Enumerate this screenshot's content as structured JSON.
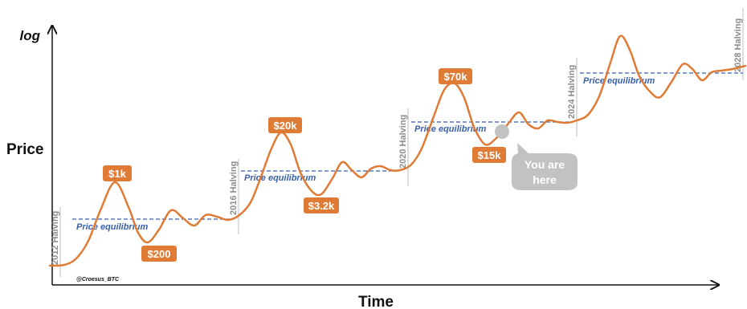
{
  "chart_data": {
    "type": "line",
    "ylabel": "Price",
    "xlabel": "Time",
    "yscale_label": "log",
    "credit": "@Croesus_BTC",
    "colors": {
      "curve": "#e07b35",
      "label_bg": "#e07b35",
      "equilibrium": "#3a5fa8",
      "halving_line": "#bdbdbd",
      "callout": "#c2c2c2"
    },
    "halvings": [
      {
        "label": "2012 Halving"
      },
      {
        "label": "2016 Halving"
      },
      {
        "label": "2020 Halving"
      },
      {
        "label": "2024 Halving"
      },
      {
        "label": "2028 Halving"
      }
    ],
    "equilibrium_label": "Price equilibrium",
    "price_labels": [
      {
        "text": "$1k"
      },
      {
        "text": "$200"
      },
      {
        "text": "$20k"
      },
      {
        "text": "$3.2k"
      },
      {
        "text": "$70k"
      },
      {
        "text": "$15k"
      }
    ],
    "callout": {
      "line1": "You are",
      "line2": "here"
    }
  }
}
